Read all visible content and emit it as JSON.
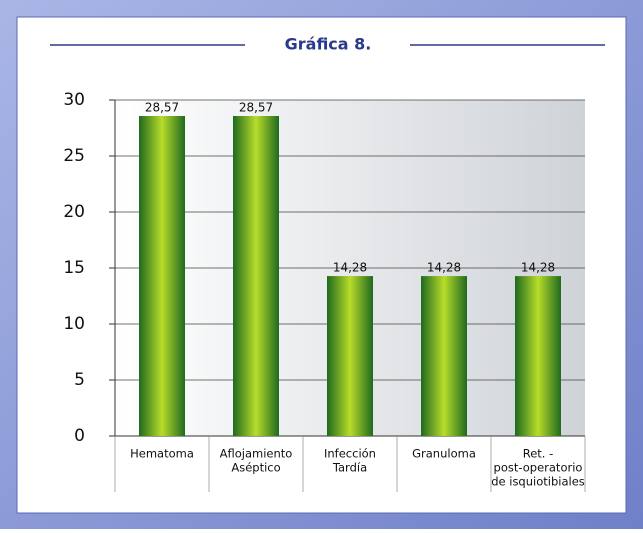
{
  "chart_data": {
    "type": "bar",
    "title": "Gráfica 8.",
    "categories": [
      [
        "Hematoma"
      ],
      [
        "Aflojamiento",
        "Aséptico"
      ],
      [
        "Infección",
        "Tardía"
      ],
      [
        "Granuloma"
      ],
      [
        "Ret. -",
        "post-operatorio",
        "de isquiotibiales"
      ]
    ],
    "values": [
      28.57,
      28.57,
      14.28,
      14.28,
      14.28
    ],
    "value_labels": [
      "28,57",
      "28,57",
      "14,28",
      "14,28",
      "14,28"
    ],
    "color": "#4a9a20",
    "ylim": [
      0,
      30
    ],
    "yticks": [
      0,
      5,
      10,
      15,
      20,
      25,
      30
    ],
    "grid": true
  }
}
